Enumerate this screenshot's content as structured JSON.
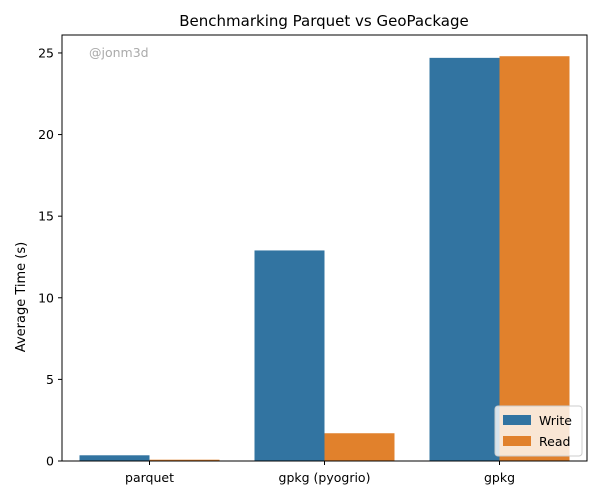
{
  "chart_data": {
    "type": "bar",
    "title": "Benchmarking Parquet vs GeoPackage",
    "xlabel": "",
    "ylabel": "Average Time (s)",
    "categories": [
      "parquet",
      "gpkg (pyogrio)",
      "gpkg"
    ],
    "series": [
      {
        "name": "Write",
        "color": "#3274a1",
        "values": [
          0.35,
          12.9,
          24.7
        ]
      },
      {
        "name": "Read",
        "color": "#e1812c",
        "values": [
          0.08,
          1.7,
          24.8
        ]
      }
    ],
    "ylim": [
      0,
      26.1
    ],
    "yticks": [
      "0",
      "5",
      "10",
      "15",
      "20",
      "25"
    ],
    "ytick_values": [
      0,
      5,
      10,
      15,
      20,
      25
    ],
    "grid": false,
    "legend_position": "bottom-right",
    "annotation": "@jonm3d"
  }
}
